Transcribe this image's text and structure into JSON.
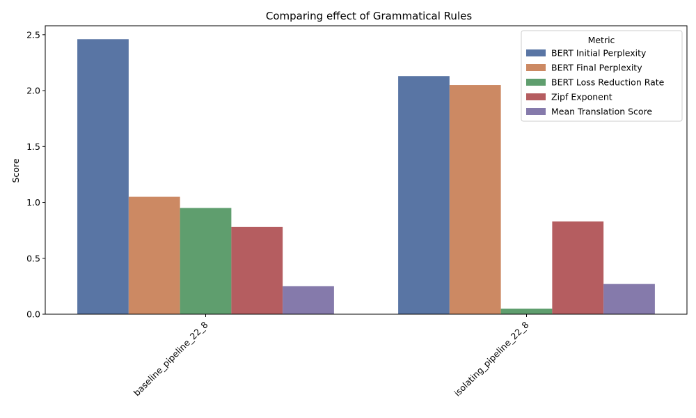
{
  "chart_data": {
    "type": "bar",
    "title": "Comparing effect of Grammatical Rules",
    "xlabel": "",
    "ylabel": "Score",
    "ylim": [
      0,
      2.58
    ],
    "yticks": [
      0.0,
      0.5,
      1.0,
      1.5,
      2.0,
      2.5
    ],
    "ytick_labels": [
      "0.0",
      "0.5",
      "1.0",
      "1.5",
      "2.0",
      "2.5"
    ],
    "categories": [
      "baseline_pipeline_22_8",
      "isolating_pipeline_22_8"
    ],
    "legend_title": "Metric",
    "legend_position": "top-right",
    "grid": false,
    "series": [
      {
        "name": "BERT Initial Perplexity",
        "color": "#5975a4",
        "values": [
          2.46,
          2.13
        ]
      },
      {
        "name": "BERT Final Perplexity",
        "color": "#cc8963",
        "values": [
          1.05,
          2.05
        ]
      },
      {
        "name": "BERT Loss Reduction Rate",
        "color": "#5f9e6e",
        "values": [
          0.95,
          0.05
        ]
      },
      {
        "name": "Zipf Exponent",
        "color": "#b55d60",
        "values": [
          0.78,
          0.83
        ]
      },
      {
        "name": "Mean Translation Score",
        "color": "#857aab",
        "values": [
          0.25,
          0.27
        ]
      }
    ]
  }
}
